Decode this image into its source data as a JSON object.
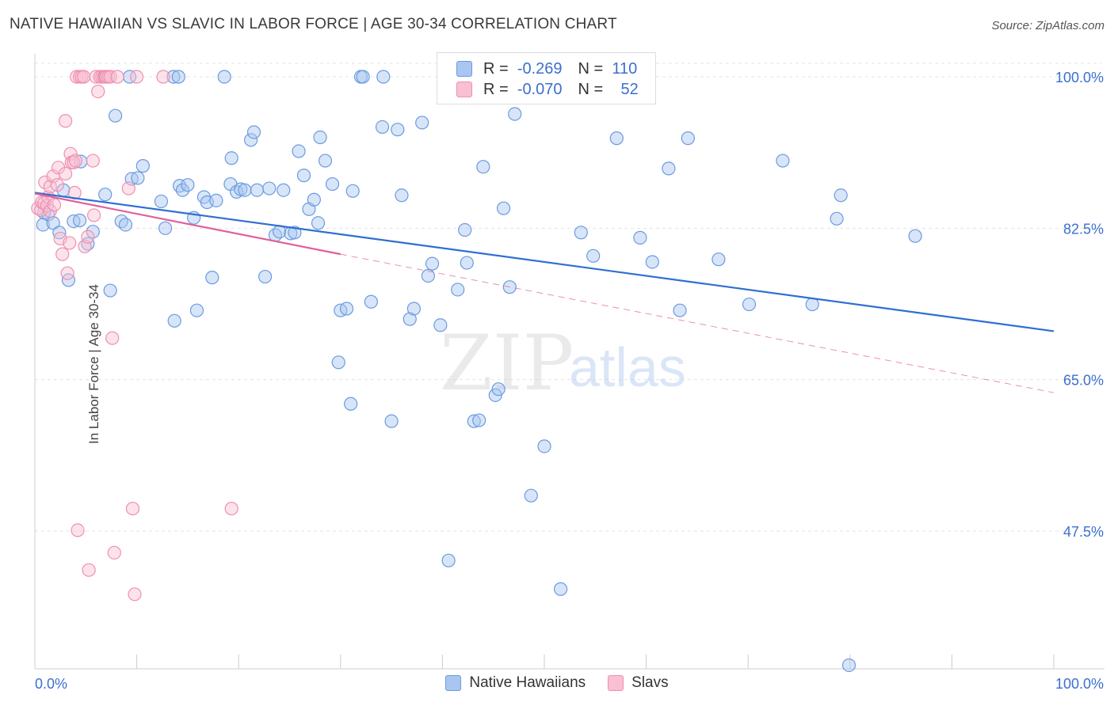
{
  "title": "NATIVE HAWAIIAN VS SLAVIC IN LABOR FORCE | AGE 30-34 CORRELATION CHART",
  "source": "Source: ZipAtlas.com",
  "watermark": {
    "zip": "ZIP",
    "atlas": "atlas"
  },
  "legend_top": [
    {
      "r_label": "R =",
      "r_value": "-0.269",
      "n_label": "N =",
      "n_value": "110"
    },
    {
      "r_label": "R =",
      "r_value": "-0.070",
      "n_label": "N =",
      "n_value": "52"
    }
  ],
  "chart_data": {
    "type": "scatter",
    "title": "NATIVE HAWAIIAN VS SLAVIC IN LABOR FORCE | AGE 30-34 CORRELATION CHART",
    "xlabel": "",
    "ylabel": "In Labor Force | Age 30-34",
    "xlim": [
      0,
      100
    ],
    "ylim": [
      31,
      101.5
    ],
    "x_tick_labels": [
      "0.0%",
      "100.0%"
    ],
    "y_ticks": [
      47.5,
      65.0,
      82.5,
      100.0
    ],
    "y_tick_labels": [
      "47.5%",
      "65.0%",
      "82.5%",
      "100.0%"
    ],
    "grid": true,
    "legend_position": "bottom",
    "colors": {
      "native_hawaiians": "#6a9be0",
      "slavs": "#ef8fb0",
      "blue_line": "#2f6fd0",
      "pink_line": "#e0609a"
    },
    "series": [
      {
        "name": "Native Hawaiians",
        "trend": {
          "x": [
            0,
            100
          ],
          "y": [
            86.6,
            70.6
          ]
        },
        "points": [
          [
            0.8,
            82.9
          ],
          [
            0.9,
            84.3
          ],
          [
            1.3,
            84.1
          ],
          [
            1.8,
            83.1
          ],
          [
            2.4,
            82.0
          ],
          [
            2.8,
            86.9
          ],
          [
            3.3,
            76.5
          ],
          [
            3.8,
            83.3
          ],
          [
            4.4,
            83.4
          ],
          [
            4.5,
            90.2
          ],
          [
            5.2,
            80.7
          ],
          [
            5.7,
            82.1
          ],
          [
            6.9,
            86.4
          ],
          [
            7.4,
            75.3
          ],
          [
            7.9,
            95.5
          ],
          [
            8.5,
            83.3
          ],
          [
            8.9,
            82.9
          ],
          [
            9.3,
            100.0
          ],
          [
            9.5,
            88.2
          ],
          [
            10.1,
            88.3
          ],
          [
            10.6,
            89.7
          ],
          [
            12.4,
            85.6
          ],
          [
            12.8,
            82.5
          ],
          [
            13.6,
            100.0
          ],
          [
            13.7,
            71.8
          ],
          [
            14.1,
            100.0
          ],
          [
            14.2,
            87.4
          ],
          [
            14.5,
            86.9
          ],
          [
            15.0,
            87.5
          ],
          [
            15.6,
            83.7
          ],
          [
            15.9,
            73.0
          ],
          [
            16.6,
            86.1
          ],
          [
            16.9,
            85.5
          ],
          [
            17.4,
            76.8
          ],
          [
            17.8,
            85.7
          ],
          [
            18.6,
            100.0
          ],
          [
            19.2,
            87.6
          ],
          [
            19.3,
            90.6
          ],
          [
            19.8,
            86.7
          ],
          [
            20.2,
            87.0
          ],
          [
            20.6,
            86.9
          ],
          [
            21.2,
            92.7
          ],
          [
            21.5,
            93.6
          ],
          [
            21.8,
            86.9
          ],
          [
            22.6,
            76.9
          ],
          [
            23.0,
            87.1
          ],
          [
            23.6,
            81.7
          ],
          [
            24.0,
            82.1
          ],
          [
            24.4,
            86.9
          ],
          [
            25.1,
            81.9
          ],
          [
            25.5,
            82.0
          ],
          [
            25.9,
            91.4
          ],
          [
            26.4,
            88.6
          ],
          [
            26.9,
            84.7
          ],
          [
            27.4,
            85.8
          ],
          [
            27.8,
            83.1
          ],
          [
            28.0,
            93.0
          ],
          [
            28.5,
            90.3
          ],
          [
            29.2,
            87.6
          ],
          [
            29.8,
            67.0
          ],
          [
            30.0,
            73.0
          ],
          [
            30.6,
            73.2
          ],
          [
            31.0,
            62.2
          ],
          [
            31.2,
            86.8
          ],
          [
            32.0,
            100.0
          ],
          [
            32.2,
            100.0
          ],
          [
            33.0,
            74.0
          ],
          [
            34.1,
            94.2
          ],
          [
            34.2,
            100.0
          ],
          [
            35.0,
            60.2
          ],
          [
            35.6,
            93.9
          ],
          [
            36.0,
            86.3
          ],
          [
            36.8,
            72.0
          ],
          [
            37.2,
            73.2
          ],
          [
            38.0,
            94.7
          ],
          [
            38.6,
            77.0
          ],
          [
            39.0,
            78.4
          ],
          [
            39.8,
            71.3
          ],
          [
            40.6,
            44.1
          ],
          [
            41.5,
            75.4
          ],
          [
            42.2,
            82.3
          ],
          [
            42.4,
            78.5
          ],
          [
            43.1,
            60.2
          ],
          [
            43.6,
            60.3
          ],
          [
            44.0,
            89.6
          ],
          [
            45.2,
            63.2
          ],
          [
            45.5,
            63.9
          ],
          [
            46.0,
            84.8
          ],
          [
            46.6,
            75.7
          ],
          [
            47.1,
            95.7
          ],
          [
            48.7,
            51.6
          ],
          [
            50.0,
            57.3
          ],
          [
            51.6,
            40.8
          ],
          [
            53.6,
            82.0
          ],
          [
            54.8,
            79.3
          ],
          [
            57.1,
            92.9
          ],
          [
            59.4,
            81.4
          ],
          [
            60.3,
            100.0
          ],
          [
            60.6,
            78.6
          ],
          [
            62.2,
            89.4
          ],
          [
            63.3,
            73.0
          ],
          [
            64.1,
            92.9
          ],
          [
            67.1,
            78.9
          ],
          [
            70.1,
            73.7
          ],
          [
            73.4,
            90.3
          ],
          [
            76.3,
            73.7
          ],
          [
            78.7,
            83.6
          ],
          [
            79.1,
            86.3
          ],
          [
            79.9,
            32.0
          ],
          [
            86.4,
            81.6
          ]
        ]
      },
      {
        "name": "Slavs",
        "trend": {
          "x": [
            0,
            30
          ],
          "y": [
            86.5,
            79.5
          ]
        },
        "dashed_trend": {
          "x": [
            30,
            100
          ],
          "y": [
            79.5,
            63.5
          ]
        },
        "points": [
          [
            0.3,
            84.8
          ],
          [
            0.6,
            84.6
          ],
          [
            0.7,
            85.5
          ],
          [
            0.9,
            85.4
          ],
          [
            1.0,
            87.8
          ],
          [
            1.2,
            85.1
          ],
          [
            1.3,
            86.1
          ],
          [
            1.5,
            84.5
          ],
          [
            1.5,
            87.3
          ],
          [
            1.8,
            88.5
          ],
          [
            1.9,
            85.2
          ],
          [
            2.2,
            87.5
          ],
          [
            2.3,
            89.5
          ],
          [
            2.5,
            81.3
          ],
          [
            2.7,
            79.5
          ],
          [
            3.0,
            88.8
          ],
          [
            3.0,
            94.9
          ],
          [
            3.2,
            77.3
          ],
          [
            3.4,
            80.8
          ],
          [
            3.5,
            91.1
          ],
          [
            3.6,
            90.1
          ],
          [
            3.8,
            90.1
          ],
          [
            3.9,
            86.6
          ],
          [
            4.0,
            90.3
          ],
          [
            4.1,
            100.0
          ],
          [
            4.2,
            47.6
          ],
          [
            4.4,
            100.0
          ],
          [
            4.6,
            100.0
          ],
          [
            4.8,
            100.0
          ],
          [
            4.9,
            80.4
          ],
          [
            5.2,
            81.5
          ],
          [
            5.3,
            43.0
          ],
          [
            5.7,
            90.3
          ],
          [
            5.8,
            84.0
          ],
          [
            6.0,
            100.0
          ],
          [
            6.2,
            98.3
          ],
          [
            6.4,
            100.0
          ],
          [
            6.6,
            100.0
          ],
          [
            6.8,
            100.0
          ],
          [
            6.9,
            100.0
          ],
          [
            7.0,
            100.0
          ],
          [
            7.2,
            100.0
          ],
          [
            7.4,
            100.0
          ],
          [
            7.6,
            69.8
          ],
          [
            7.8,
            45.0
          ],
          [
            8.1,
            100.0
          ],
          [
            9.2,
            87.1
          ],
          [
            9.6,
            50.1
          ],
          [
            9.8,
            40.2
          ],
          [
            10.0,
            100.0
          ],
          [
            12.6,
            100.0
          ],
          [
            19.3,
            50.1
          ]
        ]
      }
    ]
  },
  "legend_bottom": [
    {
      "label": "Native Hawaiians",
      "color": "#a9c6f0",
      "border": "#6a9be0"
    },
    {
      "label": "Slavs",
      "color": "#f9c0d3",
      "border": "#ef8fb0"
    }
  ]
}
